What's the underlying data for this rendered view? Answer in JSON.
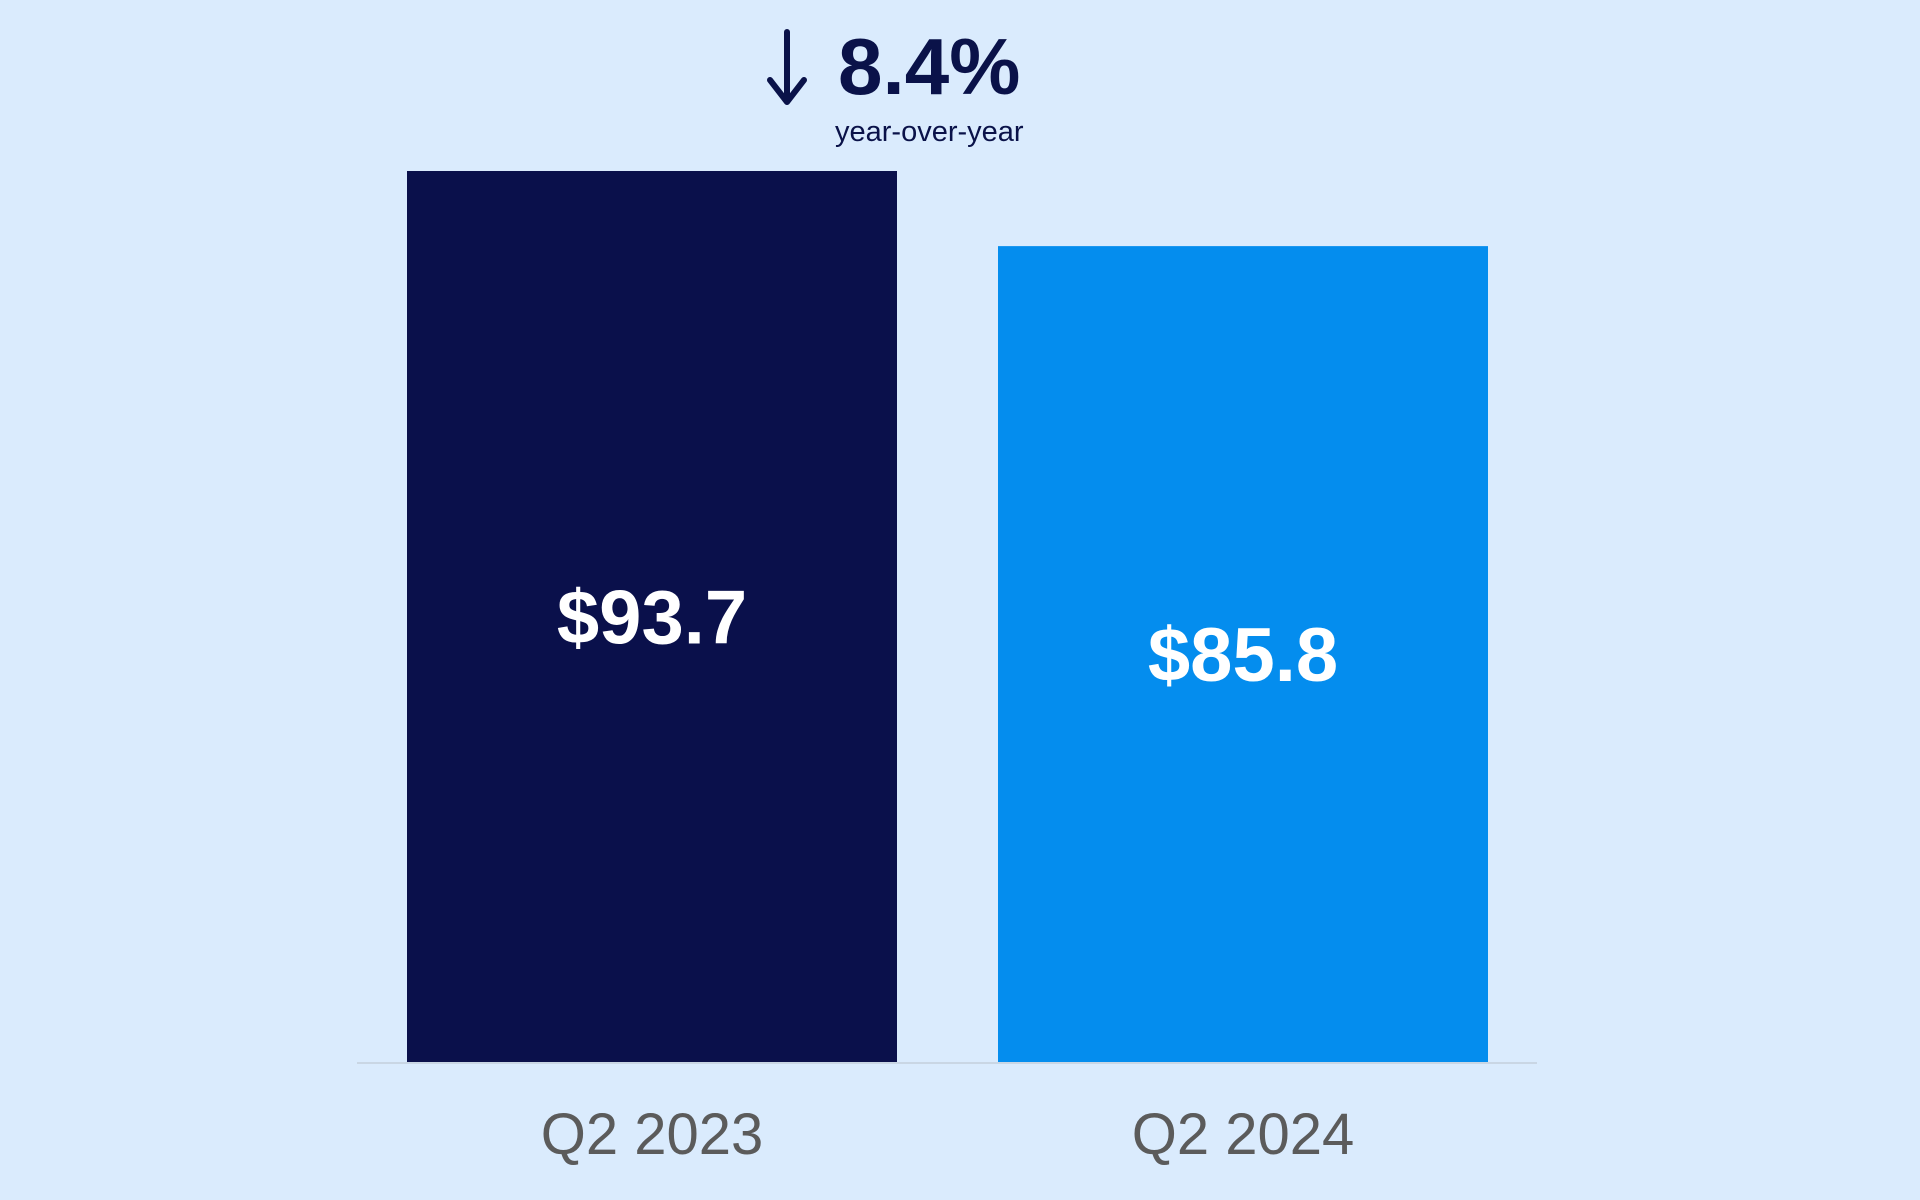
{
  "chart_data": {
    "type": "bar",
    "title": "",
    "xlabel": "",
    "ylabel": "",
    "categories": [
      "Q2 2023",
      "Q2 2024"
    ],
    "values": [
      93.7,
      85.8
    ],
    "data_labels": [
      "$93.7",
      "$85.8"
    ],
    "bar_colors": [
      "#0A104B",
      "#048DEE"
    ],
    "ylim": [
      0,
      93.7
    ],
    "grid": false,
    "legend": "none",
    "annotation": {
      "direction": "down",
      "icon": "arrow-down-icon",
      "value": "8.4%",
      "caption": "year-over-year"
    }
  },
  "colors": {
    "background": "#DAEBFD",
    "category_label": "#5B5B5B",
    "annotation_text": "#0A1249",
    "baseline": "#C9D6E4"
  }
}
